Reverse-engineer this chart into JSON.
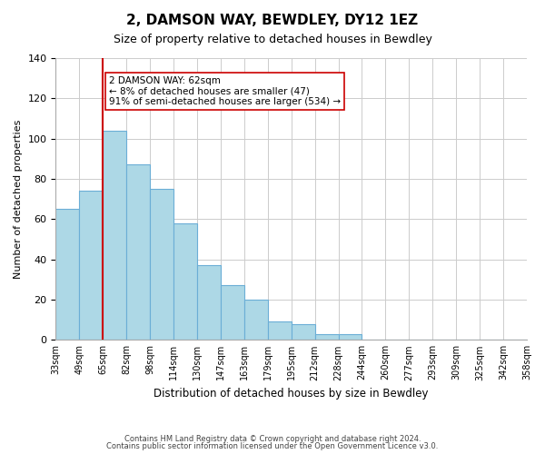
{
  "title": "2, DAMSON WAY, BEWDLEY, DY12 1EZ",
  "subtitle": "Size of property relative to detached houses in Bewdley",
  "xlabel": "Distribution of detached houses by size in Bewdley",
  "ylabel": "Number of detached properties",
  "footer_lines": [
    "Contains HM Land Registry data © Crown copyright and database right 2024.",
    "Contains public sector information licensed under the Open Government Licence v3.0."
  ],
  "bin_labels": [
    "33sqm",
    "49sqm",
    "65sqm",
    "82sqm",
    "98sqm",
    "114sqm",
    "130sqm",
    "147sqm",
    "163sqm",
    "179sqm",
    "195sqm",
    "212sqm",
    "228sqm",
    "244sqm",
    "260sqm",
    "277sqm",
    "293sqm",
    "309sqm",
    "325sqm",
    "342sqm",
    "358sqm"
  ],
  "bar_values": [
    65,
    74,
    104,
    87,
    75,
    58,
    37,
    27,
    20,
    9,
    8,
    3,
    3,
    0,
    0,
    0,
    0,
    0,
    0,
    0
  ],
  "bar_color": "#add8e6",
  "bar_edge_color": "#6baed6",
  "vline_x": 2,
  "vline_color": "#cc0000",
  "annotation_text": "2 DAMSON WAY: 62sqm\n← 8% of detached houses are smaller (47)\n91% of semi-detached houses are larger (534) →",
  "annotation_box_color": "#ffffff",
  "annotation_box_edge_color": "#cc0000",
  "ylim": [
    0,
    140
  ],
  "yticks": [
    0,
    20,
    40,
    60,
    80,
    100,
    120,
    140
  ],
  "bg_color": "#ffffff",
  "grid_color": "#cccccc"
}
